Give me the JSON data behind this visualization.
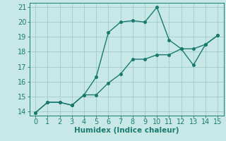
{
  "line1_x": [
    0,
    1,
    2,
    3,
    4,
    5,
    6,
    7,
    8,
    9,
    10,
    11,
    12,
    13,
    14,
    15
  ],
  "line1_y": [
    13.9,
    14.6,
    14.6,
    14.4,
    15.1,
    16.3,
    19.3,
    20.0,
    20.1,
    20.0,
    21.0,
    18.8,
    18.2,
    17.1,
    18.5,
    19.1
  ],
  "line2_x": [
    0,
    1,
    2,
    3,
    4,
    5,
    6,
    7,
    8,
    9,
    10,
    11,
    12,
    13,
    14,
    15
  ],
  "line2_y": [
    13.9,
    14.6,
    14.6,
    14.4,
    15.1,
    15.1,
    15.9,
    16.5,
    17.5,
    17.5,
    17.8,
    17.8,
    18.2,
    18.2,
    18.5,
    19.1
  ],
  "line_color": "#1a7a6e",
  "bg_color": "#c8e8e8",
  "grid_color": "#a0cccc",
  "xlabel": "Humidex (Indice chaleur)",
  "xlim": [
    -0.5,
    15.5
  ],
  "ylim": [
    13.7,
    21.3
  ],
  "xticks": [
    0,
    1,
    2,
    3,
    4,
    5,
    6,
    7,
    8,
    9,
    10,
    11,
    12,
    13,
    14,
    15
  ],
  "yticks": [
    14,
    15,
    16,
    17,
    18,
    19,
    20,
    21
  ],
  "marker_size": 3,
  "line_width": 1.0,
  "tick_fontsize": 7,
  "xlabel_fontsize": 7.5
}
